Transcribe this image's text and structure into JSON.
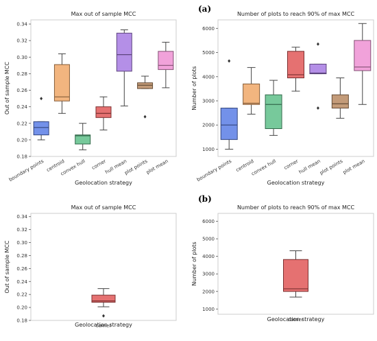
{
  "panel_labels": [
    "(a)",
    "(b)"
  ],
  "colors": {
    "boundary points": "#5b7ee5",
    "centroid": "#f0a868",
    "convex hull": "#5fbf8a",
    "corner": "#e05858",
    "hull mean": "#a77be3",
    "plot points": "#b88a62",
    "plot mean": "#ee92d3",
    "frame": "#cccccc",
    "whisker": "#444444"
  },
  "chart_data": [
    {
      "id": "a-left",
      "type": "box",
      "title": "Max out of sample MCC",
      "xlabel": "Geolocation strategy",
      "ylabel": "Out of sample MCC",
      "ylim": [
        0.18,
        0.345
      ],
      "yticks": [
        "0.18",
        "0.20",
        "0.22",
        "0.24",
        "0.26",
        "0.28",
        "0.30",
        "0.32",
        "0.34"
      ],
      "tick_rotation": 30,
      "grid": false,
      "categories": [
        "boundary points",
        "centroid",
        "convex hull",
        "corner",
        "hull mean",
        "plot points",
        "plot mean"
      ],
      "boxes": [
        {
          "category": "boundary points",
          "whislo": 0.2,
          "q1": 0.206,
          "median": 0.215,
          "q3": 0.222,
          "whishi": 0.222,
          "fliers": [
            0.25
          ]
        },
        {
          "category": "centroid",
          "whislo": 0.232,
          "q1": 0.247,
          "median": 0.252,
          "q3": 0.291,
          "whishi": 0.304,
          "fliers": []
        },
        {
          "category": "convex hull",
          "whislo": 0.188,
          "q1": 0.195,
          "median": 0.205,
          "q3": 0.206,
          "whishi": 0.22,
          "fliers": []
        },
        {
          "category": "corner",
          "whislo": 0.212,
          "q1": 0.227,
          "median": 0.232,
          "q3": 0.24,
          "whishi": 0.252,
          "fliers": []
        },
        {
          "category": "hull mean",
          "whislo": 0.241,
          "q1": 0.283,
          "median": 0.303,
          "q3": 0.329,
          "whishi": 0.333,
          "fliers": []
        },
        {
          "category": "plot points",
          "whislo": 0.262,
          "q1": 0.262,
          "median": 0.266,
          "q3": 0.269,
          "whishi": 0.277,
          "fliers": [
            0.228
          ]
        },
        {
          "category": "plot mean",
          "whislo": 0.263,
          "q1": 0.285,
          "median": 0.29,
          "q3": 0.307,
          "whishi": 0.318,
          "fliers": []
        }
      ]
    },
    {
      "id": "a-right",
      "type": "box",
      "title": "Number of plots to reach 90% of max MCC",
      "xlabel": "Geolocation strategy",
      "ylabel": "Number of plots",
      "ylim": [
        700,
        6350
      ],
      "yticks": [
        "1000",
        "2000",
        "3000",
        "4000",
        "5000",
        "6000"
      ],
      "tick_rotation": 30,
      "grid": false,
      "categories": [
        "boundary points",
        "centroid",
        "convex hull",
        "corner",
        "hull mean",
        "plot points",
        "plot mean"
      ],
      "boxes": [
        {
          "category": "boundary points",
          "whislo": 1000,
          "q1": 1400,
          "median": 2000,
          "q3": 2700,
          "whishi": 2700,
          "fliers": [
            4650
          ]
        },
        {
          "category": "centroid",
          "whislo": 2450,
          "q1": 2850,
          "median": 2900,
          "q3": 3700,
          "whishi": 4380,
          "fliers": []
        },
        {
          "category": "convex hull",
          "whislo": 1570,
          "q1": 1850,
          "median": 2850,
          "q3": 3250,
          "whishi": 3850,
          "fliers": []
        },
        {
          "category": "corner",
          "whislo": 3400,
          "q1": 3950,
          "median": 4080,
          "q3": 5050,
          "whishi": 5220,
          "fliers": []
        },
        {
          "category": "hull mean",
          "whislo": 4120,
          "q1": 4120,
          "median": 4150,
          "q3": 4520,
          "whishi": 4520,
          "fliers": [
            5350,
            2700
          ]
        },
        {
          "category": "plot points",
          "whislo": 2280,
          "q1": 2700,
          "median": 2880,
          "q3": 3250,
          "whishi": 3950,
          "fliers": []
        },
        {
          "category": "plot mean",
          "whislo": 2850,
          "q1": 4250,
          "median": 4400,
          "q3": 5500,
          "whishi": 6200,
          "fliers": []
        }
      ]
    },
    {
      "id": "b-left",
      "type": "box",
      "title": "Max out of sample MCC",
      "xlabel": "Geolocation strategy",
      "ylabel": "Out of sample MCC",
      "ylim": [
        0.18,
        0.345
      ],
      "yticks": [
        "0.18",
        "0.20",
        "0.22",
        "0.24",
        "0.26",
        "0.28",
        "0.30",
        "0.32",
        "0.34"
      ],
      "tick_rotation": 0,
      "grid": false,
      "categories": [
        "corner"
      ],
      "boxes": [
        {
          "category": "corner",
          "whislo": 0.201,
          "q1": 0.208,
          "median": 0.21,
          "q3": 0.219,
          "whishi": 0.229,
          "fliers": [
            0.187
          ]
        }
      ]
    },
    {
      "id": "b-right",
      "type": "box",
      "title": "Number of plots to reach 90% of max MCC",
      "xlabel": "Geolocation strategy",
      "ylabel": "Number of plots",
      "ylim": [
        700,
        6450
      ],
      "yticks": [
        "1000",
        "2000",
        "3000",
        "4000",
        "5000",
        "6000"
      ],
      "tick_rotation": 0,
      "grid": false,
      "categories": [
        "corner"
      ],
      "boxes": [
        {
          "category": "corner",
          "whislo": 1680,
          "q1": 2000,
          "median": 2150,
          "q3": 3820,
          "whishi": 4320,
          "fliers": []
        }
      ]
    }
  ]
}
